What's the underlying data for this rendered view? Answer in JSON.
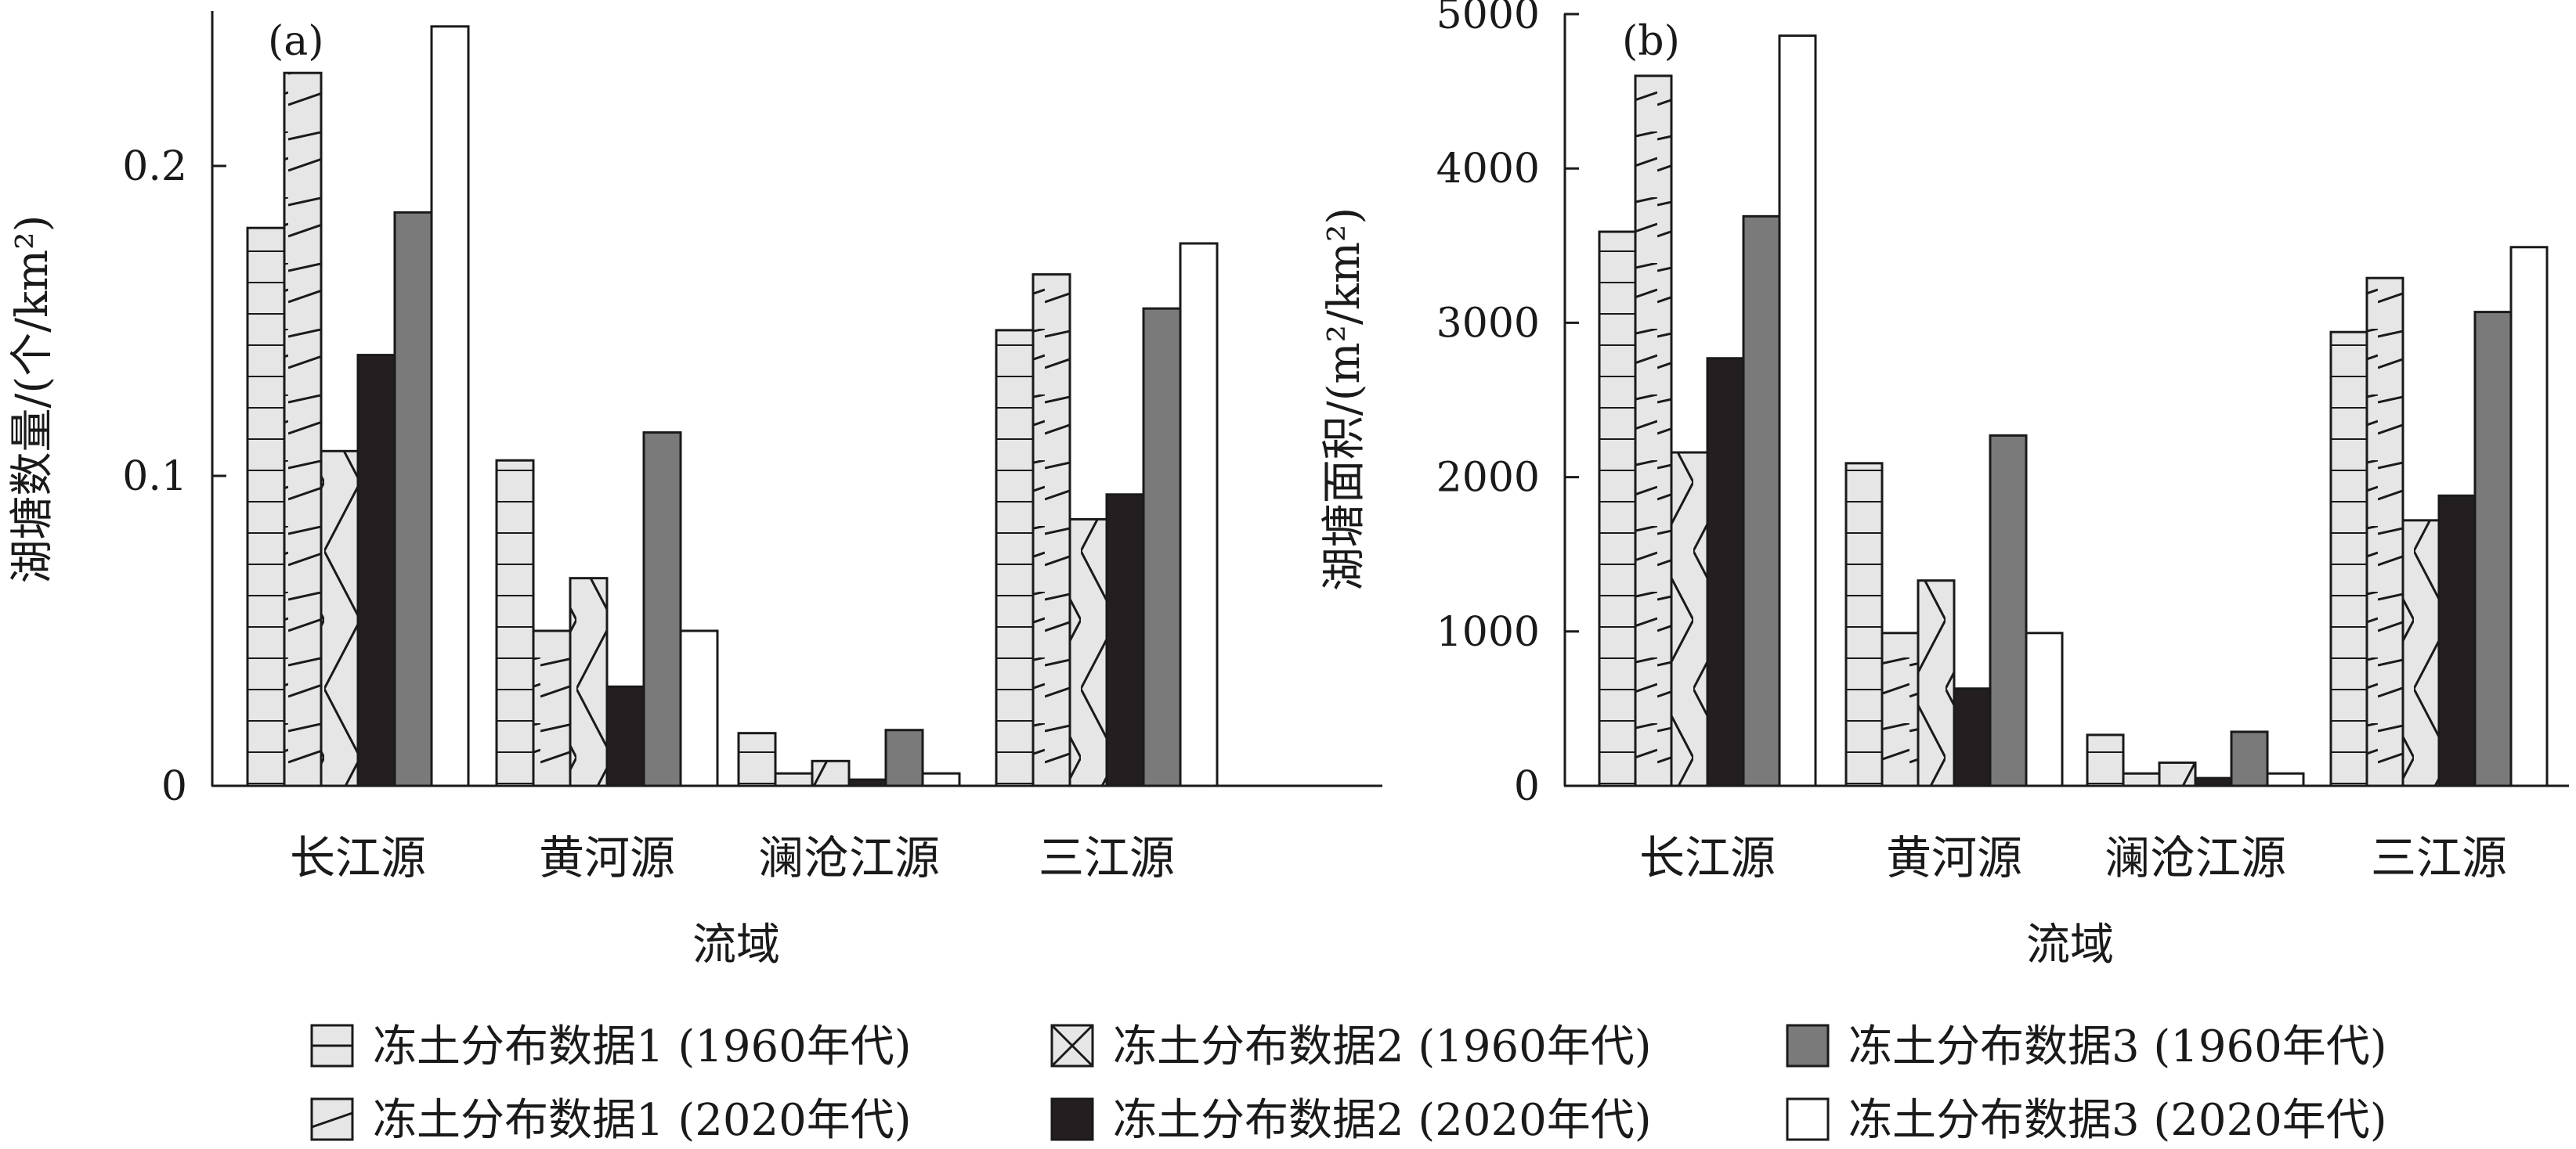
{
  "chart_data": [
    {
      "type": "bar",
      "panel_label": "(a)",
      "xlabel": "流域",
      "ylabel": "湖塘数量/(个/km²)",
      "categories": [
        "长江源",
        "黄河源",
        "澜沧江源",
        "三江源"
      ],
      "ylim": [
        0,
        0.25
      ],
      "yticks": [
        0,
        0.1,
        0.2
      ],
      "ytick_labels": [
        "0",
        "0.1",
        "0.2"
      ],
      "series": [
        {
          "name": "冻土分布数据1 (1960年代)",
          "values": [
            0.18,
            0.105,
            0.017,
            0.147
          ]
        },
        {
          "name": "冻土分布数据1 (2020年代)",
          "values": [
            0.23,
            0.05,
            0.004,
            0.165
          ]
        },
        {
          "name": "冻土分布数据2 (1960年代)",
          "values": [
            0.108,
            0.067,
            0.008,
            0.086
          ]
        },
        {
          "name": "冻土分布数据2 (2020年代)",
          "values": [
            0.139,
            0.032,
            0.002,
            0.094
          ]
        },
        {
          "name": "冻土分布数据3 (1960年代)",
          "values": [
            0.185,
            0.114,
            0.018,
            0.154
          ]
        },
        {
          "name": "冻土分布数据3 (2020年代)",
          "values": [
            0.245,
            0.05,
            0.004,
            0.175
          ]
        }
      ]
    },
    {
      "type": "bar",
      "panel_label": "(b)",
      "xlabel": "流域",
      "ylabel": "湖塘面积/(m²/km²)",
      "categories": [
        "长江源",
        "黄河源",
        "澜沧江源",
        "三江源"
      ],
      "ylim": [
        0,
        5000
      ],
      "yticks": [
        0,
        1000,
        2000,
        3000,
        4000,
        5000
      ],
      "ytick_labels": [
        "0",
        "1000",
        "2000",
        "3000",
        "4000",
        "5000"
      ],
      "series": [
        {
          "name": "冻土分布数据1 (1960年代)",
          "values": [
            3590,
            2090,
            330,
            2940
          ]
        },
        {
          "name": "冻土分布数据1 (2020年代)",
          "values": [
            4600,
            990,
            80,
            3290
          ]
        },
        {
          "name": "冻土分布数据2 (1960年代)",
          "values": [
            2160,
            1330,
            150,
            1720
          ]
        },
        {
          "name": "冻土分布数据2 (2020年代)",
          "values": [
            2770,
            630,
            50,
            1880
          ]
        },
        {
          "name": "冻土分布数据3 (1960年代)",
          "values": [
            3690,
            2270,
            350,
            3070
          ]
        },
        {
          "name": "冻土分布数据3 (2020年代)",
          "values": [
            4860,
            990,
            80,
            3490
          ]
        }
      ]
    }
  ],
  "legend": {
    "items": [
      {
        "label": "冻土分布数据1 (1960年代)",
        "style": "hbars"
      },
      {
        "label": "冻土分布数据2 (1960年代)",
        "style": "cross"
      },
      {
        "label": "冻土分布数据3 (1960年代)",
        "style": "gray"
      },
      {
        "label": "冻土分布数据1 (2020年代)",
        "style": "hbars-diag"
      },
      {
        "label": "冻土分布数据2 (2020年代)",
        "style": "black"
      },
      {
        "label": "冻土分布数据3 (2020年代)",
        "style": "white"
      }
    ]
  },
  "colors": {
    "hatched_fill": "#e6e6e6",
    "gray_fill": "#7a7a7a",
    "black_fill": "#231f20",
    "white_fill": "#ffffff",
    "stroke": "#1a1a1a"
  }
}
